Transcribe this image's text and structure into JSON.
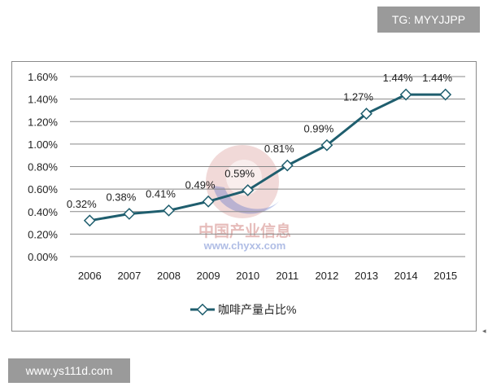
{
  "badges": {
    "tg": "TG: MYYJJPP",
    "site": "www.ys111d.com"
  },
  "watermark": {
    "brand_cn": "中国产业信息",
    "url": "www.chyxx.com"
  },
  "colors": {
    "line": "#1f5e6e",
    "marker_fill": "#ffffff",
    "grid": "#878787",
    "badge_bg": "#9a9a9a",
    "watermark_red": "#c0504d",
    "watermark_blue": "#3a5bbf"
  },
  "chart_data": {
    "type": "line",
    "title": "",
    "xlabel": "",
    "ylabel": "",
    "categories": [
      "2006",
      "2007",
      "2008",
      "2009",
      "2010",
      "2011",
      "2012",
      "2013",
      "2014",
      "2015"
    ],
    "series": [
      {
        "name": "咖啡产量占比%",
        "values": [
          0.32,
          0.38,
          0.41,
          0.49,
          0.59,
          0.81,
          0.99,
          1.27,
          1.44,
          1.44
        ],
        "labels": [
          "0.32%",
          "0.38%",
          "0.41%",
          "0.49%",
          "0.59%",
          "0.81%",
          "0.99%",
          "1.27%",
          "1.44%",
          "1.44%"
        ]
      }
    ],
    "y_ticks": [
      "0.00%",
      "0.20%",
      "0.40%",
      "0.60%",
      "0.80%",
      "1.00%",
      "1.20%",
      "1.40%",
      "1.60%"
    ],
    "ylim": [
      0,
      1.6
    ],
    "grid": true,
    "legend_position": "bottom-center"
  }
}
